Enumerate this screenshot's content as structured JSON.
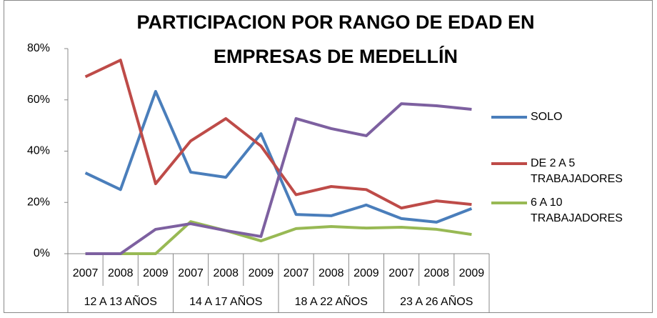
{
  "chart_data": {
    "type": "line",
    "title": [
      "PARTICIPACION  POR RANGO DE EDAD EN",
      "EMPRESAS DE MEDELLÍN"
    ],
    "categories": [
      "2007",
      "2008",
      "2009",
      "2007",
      "2008",
      "2009",
      "2007",
      "2008",
      "2009",
      "2007",
      "2008",
      "2009"
    ],
    "groups": [
      "12 A 13 AÑOS",
      "14 A 17 AÑOS",
      "18 A 22 AÑOS",
      "23 A 26 AÑOS"
    ],
    "series": [
      {
        "name": "SOLO",
        "color": "#4a7ebb",
        "values": [
          31.5,
          25,
          63.3,
          31.8,
          29.8,
          46.8,
          15.3,
          14.8,
          19,
          13.7,
          12.3,
          17.6
        ]
      },
      {
        "name": "DE 2 A 5 TRABAJADORES",
        "color": "#be4b48",
        "values": [
          69,
          75.5,
          27.3,
          44,
          52.7,
          42,
          23,
          26.2,
          25,
          17.8,
          20.6,
          19.2
        ]
      },
      {
        "name": "6 A 10 TRABAJADORES",
        "color": "#98b954",
        "values": [
          0,
          0,
          0,
          12.5,
          9,
          5,
          9.8,
          10.6,
          10,
          10.3,
          9.5,
          7.5
        ]
      },
      {
        "color": "#7d60a0",
        "values": [
          0,
          0,
          9.5,
          11.7,
          9,
          6.7,
          52.7,
          48.8,
          46,
          58.5,
          57.7,
          56.3
        ]
      }
    ],
    "ylim": [
      0,
      80
    ],
    "yticks": [
      {
        "value": 0,
        "label": "0%"
      },
      {
        "value": 20,
        "label": "20%"
      },
      {
        "value": 40,
        "label": "40%"
      },
      {
        "value": 60,
        "label": "60%"
      },
      {
        "value": 80,
        "label": "80%"
      }
    ],
    "grid": false,
    "legend": "right"
  }
}
